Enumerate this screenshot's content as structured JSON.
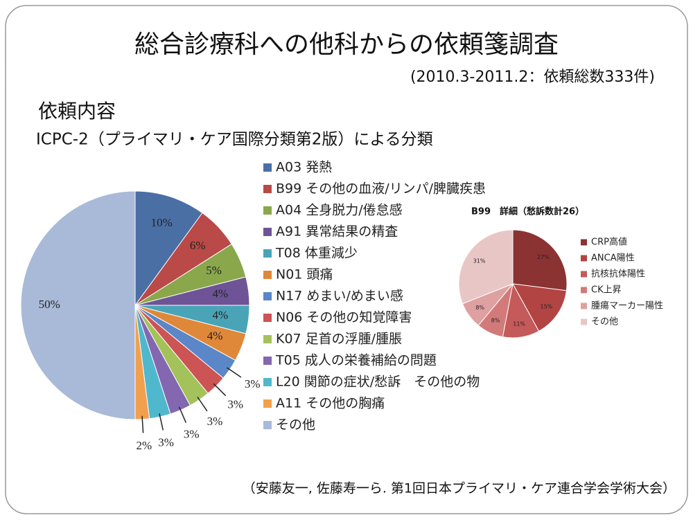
{
  "slide": {
    "title": "総合診療科への他科からの依頼箋調査",
    "subtitle": "(2010.3-2011.2：依頼総数333件)",
    "heading": "依頼内容",
    "source": "（安藤友一, 佐藤寿一ら. 第1回日本プライマリ・ケア連合学会学術大会）"
  },
  "chart_data": [
    {
      "type": "pie",
      "title": "ICPC-2（プライマリ・ケア国際分類第2版）による分類",
      "categories": [
        "A03 発熱",
        "B99 その他の血液/リンパ/脾臓疾患",
        "A04 全身脱力/倦怠感",
        "A91 異常結果の精査",
        "T08 体重減少",
        "N01 頭痛",
        "N17 めまい/めまい感",
        "N06 その他の知覚障害",
        "K07 足首の浮腫/腫脹",
        "T05 成人の栄養補給の問題",
        "L20 関節の症状/愁訴　その他の物",
        "A11 その他の胸痛",
        "その他"
      ],
      "values": [
        10,
        6,
        5,
        4,
        4,
        4,
        3,
        3,
        3,
        3,
        3,
        2,
        50
      ],
      "value_labels": [
        "10%",
        "6%",
        "5%",
        "4%",
        "4%",
        "4%",
        "3%",
        "3%",
        "3%",
        "3%",
        "3%",
        "2%",
        "50%"
      ],
      "colors": [
        "#4a6fa5",
        "#b94a48",
        "#8aa84b",
        "#6e5497",
        "#4aa4b8",
        "#e0883a",
        "#5b87c8",
        "#cc5454",
        "#a4c25a",
        "#8367b0",
        "#4fb8cc",
        "#f2a04e",
        "#a9b9d8"
      ]
    },
    {
      "type": "pie",
      "title": "B99　詳細（愁訴数計26）",
      "categories": [
        "CRP高値",
        "ANCA陽性",
        "抗核抗体陽性",
        "CK上昇",
        "腫瘍マーカー陽性",
        "その他"
      ],
      "values": [
        27,
        15,
        11,
        8,
        8,
        31
      ],
      "value_labels": [
        "27%",
        "15%",
        "11%",
        "8%",
        "8%",
        "31%"
      ],
      "colors": [
        "#8b3232",
        "#b24444",
        "#c45a5a",
        "#d27a7a",
        "#dea0a0",
        "#e9c6c6"
      ]
    }
  ]
}
